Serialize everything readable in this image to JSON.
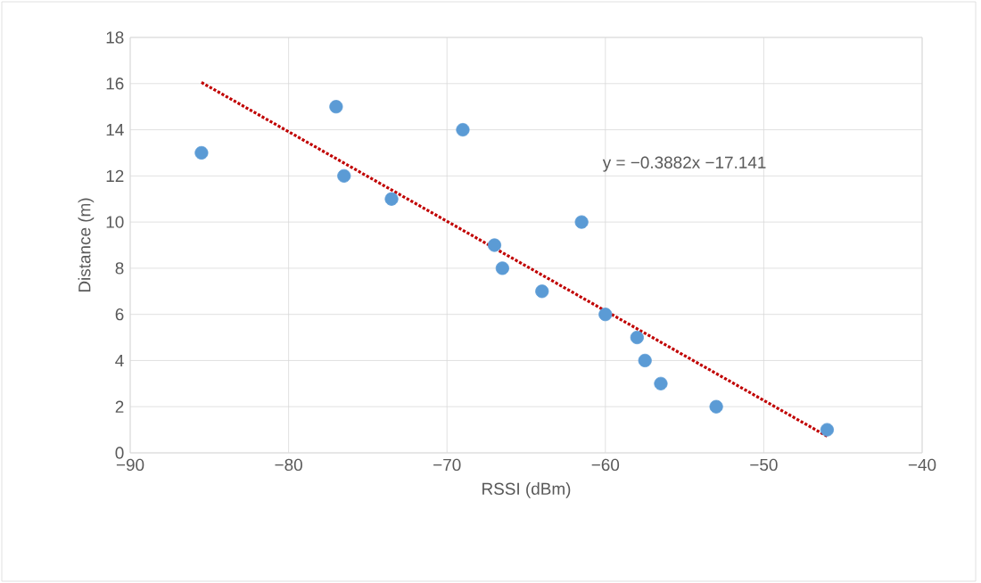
{
  "chart_data": {
    "type": "scatter",
    "xlabel": "RSSI (dBm)",
    "ylabel": "Distance (m)",
    "xlim": [
      -90,
      -40
    ],
    "xticks": [
      {
        "value": -90,
        "label": "−90"
      },
      {
        "value": -80,
        "label": "−80"
      },
      {
        "value": -70,
        "label": "−70"
      },
      {
        "value": -60,
        "label": "−60"
      },
      {
        "value": -50,
        "label": "−50"
      },
      {
        "value": -40,
        "label": "−40"
      }
    ],
    "ylim": [
      0,
      18
    ],
    "yticks": [
      0,
      2,
      4,
      6,
      8,
      10,
      12,
      14,
      16,
      18
    ],
    "grid": true,
    "marker": "circle",
    "annotations": [
      "y = −0.3882x −17.141"
    ],
    "series": [
      {
        "color": "#5b9bd5",
        "x": [
          -85.5,
          -77,
          -76.5,
          -73.5,
          -69,
          -67,
          -66.5,
          -64,
          -61.5,
          -60,
          -58,
          -57.5,
          -56.5,
          -53,
          -46
        ],
        "values": [
          13,
          15,
          12,
          11,
          14,
          9,
          8,
          7,
          10,
          6,
          5,
          4,
          3,
          2,
          1
        ]
      },
      {
        "type": "line",
        "color": "#c00000",
        "line_style": "dotted",
        "marker": "none",
        "x": [
          -85.5,
          -46
        ],
        "values": [
          16.05,
          0.72
        ]
      }
    ]
  }
}
